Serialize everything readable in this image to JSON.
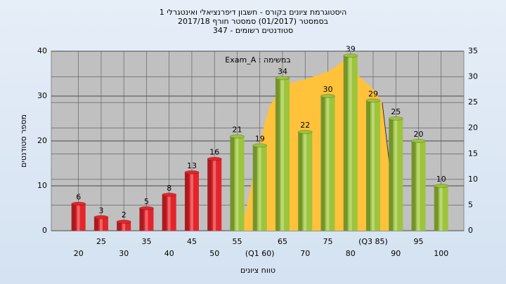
{
  "chart_data": {
    "type": "bar",
    "title": [
      "היסטוגרמת ציונים בקורס - חשבון דיפרנציאלי ואינטגרלי 1",
      "בסמסטר  (01/2017)  סמסטר חורף 2017/18",
      "סטודנטים רשומים - 347"
    ],
    "annotation": "במשימה : Exam_A",
    "xlabel": "טווח ציונים",
    "ylabel": "מספר סטודנטים",
    "x": [
      20,
      25,
      30,
      35,
      40,
      45,
      50,
      55,
      60,
      65,
      70,
      75,
      80,
      85,
      90,
      95,
      100
    ],
    "values": [
      6,
      3,
      2,
      5,
      8,
      13,
      16,
      21,
      19,
      34,
      22,
      30,
      39,
      29,
      25,
      20,
      10
    ],
    "bar_colors": [
      "#e3252b",
      "#e3252b",
      "#e3252b",
      "#e3252b",
      "#e3252b",
      "#e3252b",
      "#e3252b",
      "#9cc43c",
      "#9cc43c",
      "#9cc43c",
      "#9cc43c",
      "#9cc43c",
      "#9cc43c",
      "#9cc43c",
      "#9cc43c",
      "#9cc43c",
      "#9cc43c"
    ],
    "area": {
      "axis": "y2",
      "color": "#ffc23a",
      "x": [
        56,
        60,
        62,
        65,
        70,
        75,
        80,
        82,
        85,
        87,
        89
      ],
      "values": [
        0,
        17,
        24,
        28.5,
        29.5,
        31,
        34,
        30,
        27.6,
        25,
        10
      ]
    },
    "xlim": [
      14,
      105
    ],
    "xticks": [
      20,
      25,
      30,
      35,
      40,
      45,
      50,
      55,
      {
        "value": 60,
        "label": "(Q1 60)"
      },
      65,
      70,
      75,
      80,
      {
        "value": 85,
        "label": "(Q3 85)"
      },
      90,
      95,
      100
    ],
    "ylim": [
      0,
      40
    ],
    "yticks": [
      0,
      10,
      20,
      30,
      40
    ],
    "y2lim": [
      0,
      35
    ],
    "y2ticks": [
      0,
      5,
      10,
      15,
      20,
      25,
      30,
      35
    ],
    "grid": true
  }
}
